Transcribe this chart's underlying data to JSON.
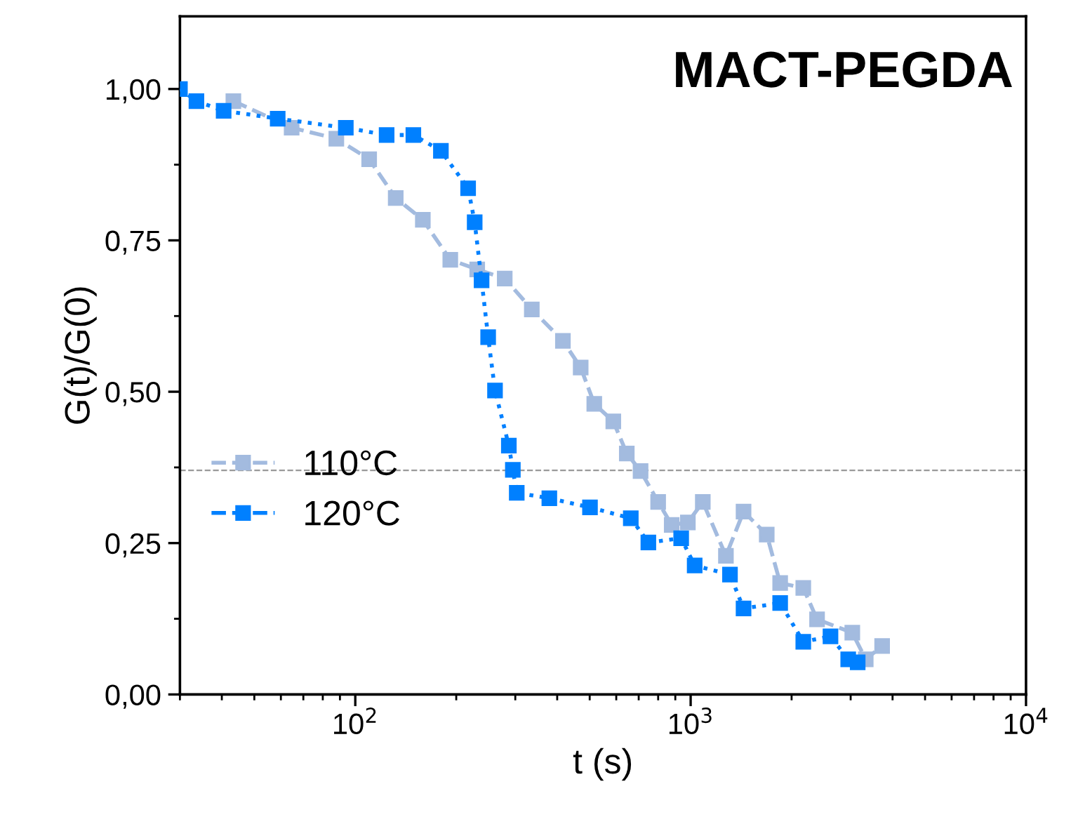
{
  "chart_data": {
    "type": "line",
    "xlabel": "t (s)",
    "ylabel": "G(t)/G(0)",
    "log": "x",
    "xlim": [
      30,
      10000
    ],
    "ylim": [
      0,
      1.12
    ],
    "xticks": [
      {
        "value": 100,
        "label": "10$^{2}$"
      },
      {
        "value": 1000,
        "label": "10$^{3}$"
      },
      {
        "value": 10000,
        "label": "10$^{4}$"
      }
    ],
    "yticks": [
      {
        "value": 0,
        "label": "0,00"
      },
      {
        "value": 0.25,
        "label": "0,25"
      },
      {
        "value": 0.5,
        "label": "0,50"
      },
      {
        "value": 0.75,
        "label": "0,75"
      },
      {
        "value": 1,
        "label": "1,00"
      }
    ],
    "grid": false,
    "legend": "left",
    "marker": "square",
    "annotations": [
      "MACT-PEGDA"
    ],
    "ref_lines": [
      {
        "axis": "y",
        "value": 0.37,
        "color": "#999999",
        "line_style": "dashed"
      }
    ],
    "series": [
      {
        "name": "110°C",
        "color": "#a3bbdf",
        "line_style": "dashed",
        "x": [
          43.3,
          64.6,
          87.8,
          110,
          132,
          159,
          192,
          231,
          279,
          336,
          416,
          470,
          516,
          588,
          645,
          709,
          800,
          878,
          981,
          1087,
          1274,
          1438,
          1686,
          1849,
          2167,
          2382,
          3034,
          3327,
          3724
        ],
        "values": [
          0.98,
          0.936,
          0.918,
          0.884,
          0.82,
          0.784,
          0.718,
          0.702,
          0.687,
          0.636,
          0.584,
          0.54,
          0.48,
          0.451,
          0.398,
          0.369,
          0.318,
          0.28,
          0.284,
          0.318,
          0.229,
          0.302,
          0.264,
          0.184,
          0.176,
          0.124,
          0.102,
          0.058,
          0.08
        ]
      },
      {
        "name": "120°C",
        "color": "#0080ff",
        "line_style": "dotted",
        "x": [
          30,
          33.6,
          40.5,
          58.7,
          93.7,
          124,
          149,
          180,
          217,
          227,
          238,
          249,
          261,
          287,
          295,
          303,
          379,
          501,
          663,
          748,
          937,
          1028,
          1310,
          1438,
          1849,
          2167,
          2612,
          2950,
          3148
        ],
        "values": [
          1.0,
          0.98,
          0.964,
          0.951,
          0.936,
          0.924,
          0.924,
          0.898,
          0.836,
          0.78,
          0.684,
          0.59,
          0.502,
          0.411,
          0.371,
          0.333,
          0.324,
          0.309,
          0.291,
          0.251,
          0.258,
          0.213,
          0.198,
          0.142,
          0.151,
          0.087,
          0.096,
          0.058,
          0.053
        ]
      }
    ]
  }
}
